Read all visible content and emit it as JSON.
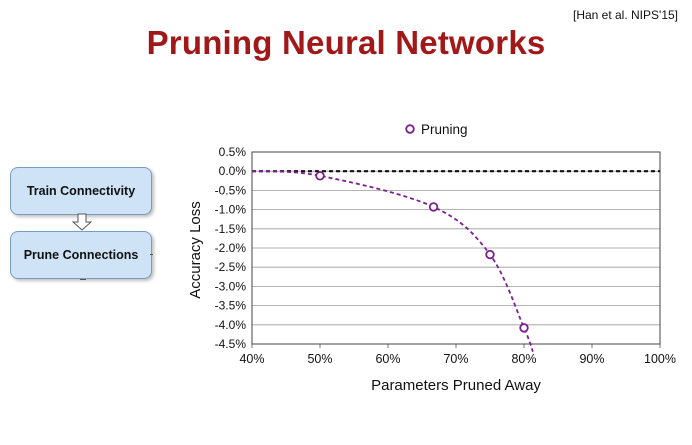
{
  "citation": "[Han et al. NIPS'15]",
  "title": "Pruning Neural Networks",
  "flow": {
    "box1": "Train Connectivity",
    "box2": "Prune Connections"
  },
  "colors": {
    "title": "#a01818",
    "series": "#7b2090",
    "box_fill": "#cfe3f7"
  },
  "chart_data": {
    "type": "scatter",
    "title": "",
    "xlabel": "Parameters Pruned Away",
    "ylabel": "Accuracy Loss",
    "xlim": [
      40,
      100
    ],
    "ylim": [
      -4.5,
      0.5
    ],
    "x_ticks": [
      "40%",
      "50%",
      "60%",
      "70%",
      "80%",
      "90%",
      "100%"
    ],
    "y_ticks": [
      "0.5%",
      "0.0%",
      "-0.5%",
      "-1.0%",
      "-1.5%",
      "-2.0%",
      "-2.5%",
      "-3.0%",
      "-3.5%",
      "-4.0%",
      "-4.5%"
    ],
    "grid": "horizontal",
    "legend": "top",
    "reference_line": 0.0,
    "series": [
      {
        "name": "Pruning",
        "x": [
          50,
          66.7,
          75,
          80
        ],
        "y": [
          -0.12,
          -0.93,
          -2.17,
          -4.08
        ],
        "trendline": "dashed"
      }
    ]
  }
}
